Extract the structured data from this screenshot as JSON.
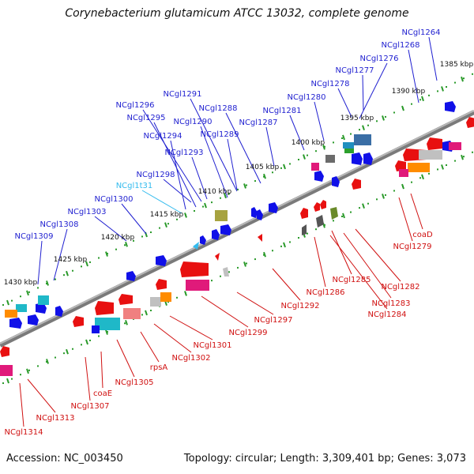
{
  "header": {
    "title": "Corynebacterium glutamicum ATCC 13032, complete genome"
  },
  "footer": {
    "accession": "Accession: NC_003450",
    "summary": "Topology: circular; Length: 3,309,401 bp; Genes: 3,073"
  },
  "colors": {
    "backbone": "#808080",
    "ruler_tick": "#2a9a2a",
    "label_top": "#1f1fd0",
    "label_bottom": "#d01010",
    "label_rna": "#33bbee",
    "gene_blue": "#1010e8",
    "gene_red": "#e81010"
  },
  "ruler_top": {
    "ticks": [
      "1385 kbp",
      "1390 kbp",
      "1395 kbp",
      "1400 kbp",
      "1405 kbp",
      "1410 kbp",
      "1415 kbp",
      "1420 kbp",
      "1425 kbp",
      "1430 kbp"
    ]
  },
  "top_labels": [
    "NCgl1264",
    "NCgl1268",
    "NCgl1276",
    "NCgl1277",
    "NCgl1278",
    "NCgl1280",
    "NCgl1281",
    "NCgl1287",
    "NCgl1288",
    "NCgl1291",
    "NCgl1290",
    "NCgl1289",
    "NCgl1296",
    "NCgl1295",
    "NCgl1294",
    "NCgl1293",
    "NCgl1298",
    "NCgl1t31",
    "NCgl1300",
    "NCgl1303",
    "NCgl1308",
    "NCgl1309"
  ],
  "bottom_labels": [
    "coaD",
    "NCgl1279",
    "NCgl1282",
    "NCgl1283",
    "NCgl1284",
    "NCgl1285",
    "NCgl1286",
    "NCgl1292",
    "NCgl1297",
    "NCgl1299",
    "NCgl1301",
    "NCgl1302",
    "rpsA",
    "NCgl1305",
    "coaE",
    "NCgl1307",
    "NCgl1313",
    "NCgl1314"
  ]
}
